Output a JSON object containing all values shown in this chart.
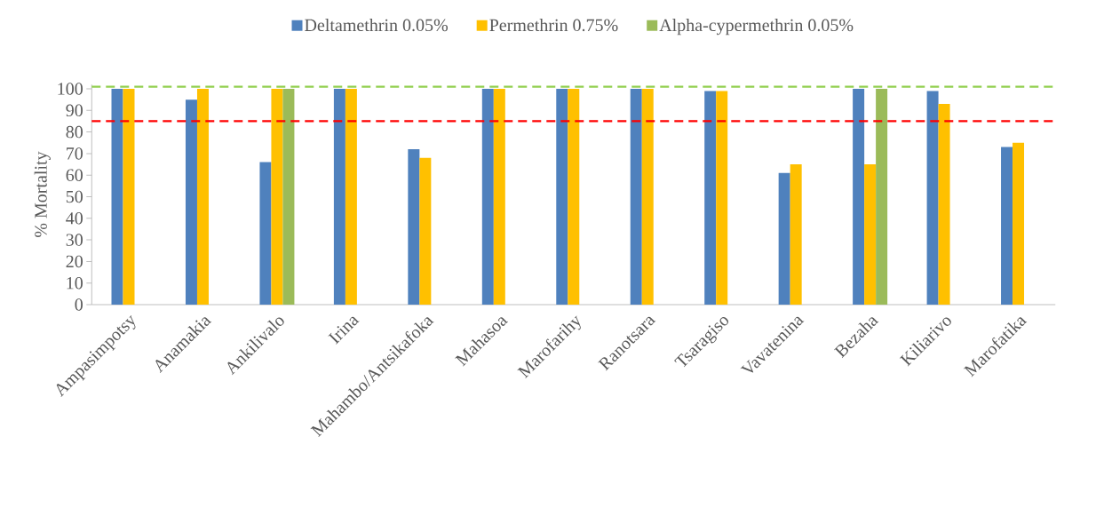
{
  "chart_data": {
    "type": "bar",
    "ylabel": "% Mortality",
    "categories": [
      "Ampasimpotsy",
      "Anamakia",
      "Ankilivalo",
      "Irina",
      "Mahambo/Antsikafoka",
      "Mahasoa",
      "Marofarihy",
      "Ranotsara",
      "Tsaragiso",
      "Vavatenina",
      "Bezaha",
      "Kiliarivo",
      "Marofatika"
    ],
    "series": [
      {
        "name": "Deltamethrin 0.05%",
        "color": "#4f81bd",
        "values": [
          100,
          95,
          66,
          100,
          72,
          100,
          100,
          100,
          99,
          61,
          100,
          99,
          73
        ]
      },
      {
        "name": "Permethrin 0.75%",
        "color": "#ffc000",
        "values": [
          100,
          100,
          100,
          100,
          68,
          100,
          100,
          100,
          99,
          65,
          65,
          93,
          75
        ]
      },
      {
        "name": "Alpha-cypermethrin 0.05%",
        "color": "#9bbb59",
        "values": [
          null,
          null,
          100,
          null,
          null,
          null,
          null,
          null,
          null,
          null,
          100,
          null,
          null
        ]
      }
    ],
    "ylim": [
      0,
      102
    ],
    "yticks": [
      0,
      10,
      20,
      30,
      40,
      50,
      60,
      70,
      80,
      90,
      100
    ],
    "ref_lines": [
      {
        "axis": "y",
        "value": 101,
        "color": "#92d050",
        "line_style": "dashed"
      },
      {
        "axis": "y",
        "value": 85,
        "color": "#ff0000",
        "line_style": "dashed"
      }
    ],
    "legend": "top",
    "grid": false
  }
}
